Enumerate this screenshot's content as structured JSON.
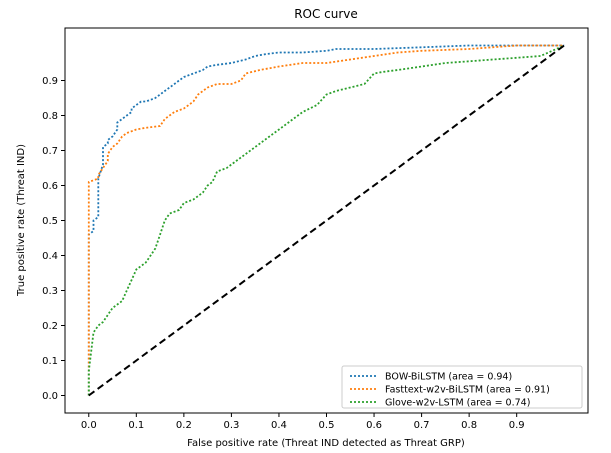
{
  "chart_data": {
    "type": "line",
    "title": "ROC curve",
    "xlabel": "False positive rate (Threat IND detected as Threat GRP)",
    "ylabel": "True positive rate (Threat IND)",
    "xlim": [
      -0.05,
      1.05
    ],
    "ylim": [
      -0.05,
      1.05
    ],
    "xticks": [
      0.0,
      0.1,
      0.2,
      0.3,
      0.4,
      0.5,
      0.6,
      0.7,
      0.8,
      0.9
    ],
    "yticks": [
      0.0,
      0.1,
      0.2,
      0.3,
      0.4,
      0.5,
      0.6,
      0.7,
      0.8,
      0.9
    ],
    "tick_format": "0.1f",
    "grid": false,
    "legend_position": "lower-right",
    "reference_line": {
      "x": [
        0,
        1
      ],
      "y": [
        0,
        1
      ],
      "color": "#000000",
      "style": "dashed"
    },
    "series": [
      {
        "name": "BOW-BiLSTM (area = 0.94)",
        "color": "#1f77b4",
        "style": "dotted",
        "x": [
          0,
          0,
          0.01,
          0.01,
          0.02,
          0.02,
          0.03,
          0.03,
          0.04,
          0.04,
          0.05,
          0.06,
          0.06,
          0.07,
          0.08,
          0.09,
          0.09,
          0.1,
          0.11,
          0.12,
          0.13,
          0.14,
          0.15,
          0.16,
          0.17,
          0.18,
          0.19,
          0.2,
          0.22,
          0.24,
          0.25,
          0.27,
          0.3,
          0.33,
          0.35,
          0.37,
          0.4,
          0.45,
          0.5,
          0.52,
          0.6,
          0.7,
          0.8,
          0.9,
          1.0
        ],
        "y": [
          0,
          0.46,
          0.47,
          0.5,
          0.51,
          0.62,
          0.66,
          0.71,
          0.72,
          0.73,
          0.74,
          0.76,
          0.78,
          0.79,
          0.8,
          0.81,
          0.82,
          0.83,
          0.84,
          0.84,
          0.845,
          0.85,
          0.86,
          0.87,
          0.88,
          0.89,
          0.9,
          0.91,
          0.92,
          0.93,
          0.94,
          0.945,
          0.95,
          0.96,
          0.97,
          0.975,
          0.98,
          0.98,
          0.985,
          0.99,
          0.99,
          0.995,
          1.0,
          1.0,
          1.0
        ]
      },
      {
        "name": "Fasttext-w2v-BiLSTM (area = 0.91)",
        "color": "#ff7f0e",
        "style": "dotted",
        "x": [
          0,
          0,
          0.02,
          0.02,
          0.03,
          0.04,
          0.04,
          0.05,
          0.06,
          0.07,
          0.08,
          0.1,
          0.12,
          0.15,
          0.16,
          0.17,
          0.18,
          0.2,
          0.22,
          0.23,
          0.24,
          0.25,
          0.27,
          0.3,
          0.32,
          0.33,
          0.36,
          0.4,
          0.45,
          0.5,
          0.55,
          0.6,
          0.65,
          0.7,
          0.8,
          0.9,
          1.0
        ],
        "y": [
          0,
          0.61,
          0.62,
          0.63,
          0.65,
          0.67,
          0.69,
          0.71,
          0.72,
          0.74,
          0.75,
          0.76,
          0.765,
          0.77,
          0.79,
          0.8,
          0.81,
          0.82,
          0.84,
          0.86,
          0.87,
          0.88,
          0.89,
          0.89,
          0.9,
          0.92,
          0.93,
          0.94,
          0.95,
          0.95,
          0.96,
          0.97,
          0.98,
          0.985,
          0.99,
          1.0,
          1.0
        ]
      },
      {
        "name": "Glove-w2v-LSTM (area = 0.74)",
        "color": "#2ca02c",
        "style": "dotted",
        "x": [
          0,
          0,
          0.01,
          0.02,
          0.03,
          0.05,
          0.06,
          0.07,
          0.08,
          0.09,
          0.1,
          0.11,
          0.12,
          0.13,
          0.14,
          0.15,
          0.16,
          0.17,
          0.19,
          0.2,
          0.22,
          0.24,
          0.25,
          0.26,
          0.27,
          0.29,
          0.3,
          0.32,
          0.35,
          0.38,
          0.4,
          0.43,
          0.45,
          0.48,
          0.5,
          0.52,
          0.55,
          0.58,
          0.6,
          0.62,
          0.65,
          0.7,
          0.75,
          0.8,
          0.85,
          0.9,
          0.95,
          1.0
        ],
        "y": [
          0,
          0.07,
          0.18,
          0.2,
          0.21,
          0.25,
          0.26,
          0.27,
          0.3,
          0.33,
          0.36,
          0.37,
          0.38,
          0.4,
          0.42,
          0.46,
          0.5,
          0.52,
          0.53,
          0.55,
          0.56,
          0.58,
          0.6,
          0.61,
          0.64,
          0.65,
          0.66,
          0.68,
          0.71,
          0.74,
          0.76,
          0.79,
          0.81,
          0.83,
          0.86,
          0.87,
          0.88,
          0.89,
          0.92,
          0.925,
          0.93,
          0.94,
          0.95,
          0.955,
          0.96,
          0.965,
          0.97,
          1.0
        ]
      }
    ]
  }
}
